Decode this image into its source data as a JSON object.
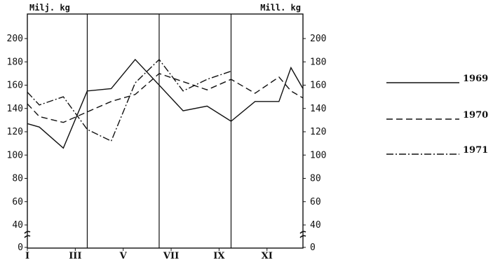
{
  "chart_data": {
    "type": "line",
    "y_unit_left": "Milj. kg",
    "y_unit_right": "Mill. kg",
    "ylim": [
      0,
      220
    ],
    "y_axis_break": true,
    "y_ticks": [
      0,
      40,
      60,
      80,
      100,
      120,
      140,
      160,
      180,
      200
    ],
    "x_month_range": [
      1,
      12
    ],
    "x_ticks": [
      {
        "label": "I",
        "month": 1
      },
      {
        "label": "III",
        "month": 3
      },
      {
        "label": "V",
        "month": 5
      },
      {
        "label": "VII",
        "month": 7
      },
      {
        "label": "IX",
        "month": 9
      },
      {
        "label": "XI",
        "month": 11
      }
    ],
    "quarter_dividers": [
      3.5,
      6.5,
      9.5
    ],
    "legend_placement": "right",
    "series": [
      {
        "name": "1969",
        "style": "solid",
        "points": [
          [
            1,
            127
          ],
          [
            1.5,
            124
          ],
          [
            2.5,
            106
          ],
          [
            3.5,
            155
          ],
          [
            4.5,
            157
          ],
          [
            5.5,
            182
          ],
          [
            6.5,
            160
          ],
          [
            7.5,
            138
          ],
          [
            8.5,
            142
          ],
          [
            9.5,
            129
          ],
          [
            10.5,
            146
          ],
          [
            11.5,
            146
          ],
          [
            12,
            175
          ],
          [
            12.5,
            157
          ]
        ]
      },
      {
        "name": "1970",
        "style": "dashed",
        "points": [
          [
            1,
            144
          ],
          [
            1.5,
            133
          ],
          [
            2.5,
            128
          ],
          [
            3.5,
            137
          ],
          [
            4.5,
            146
          ],
          [
            5.5,
            152
          ],
          [
            6.5,
            170
          ],
          [
            7.5,
            163
          ],
          [
            8.5,
            156
          ],
          [
            9.5,
            165
          ],
          [
            10.5,
            153
          ],
          [
            11.5,
            167
          ],
          [
            12,
            155
          ],
          [
            12.5,
            149
          ]
        ]
      },
      {
        "name": "1971",
        "style": "dashdot",
        "points": [
          [
            1,
            154
          ],
          [
            1.5,
            143
          ],
          [
            2.5,
            150
          ],
          [
            3.5,
            122
          ],
          [
            4.5,
            112
          ],
          [
            5.5,
            162
          ],
          [
            6.5,
            182
          ],
          [
            7.5,
            155
          ],
          [
            8.5,
            165
          ],
          [
            9.5,
            172
          ]
        ]
      }
    ]
  }
}
